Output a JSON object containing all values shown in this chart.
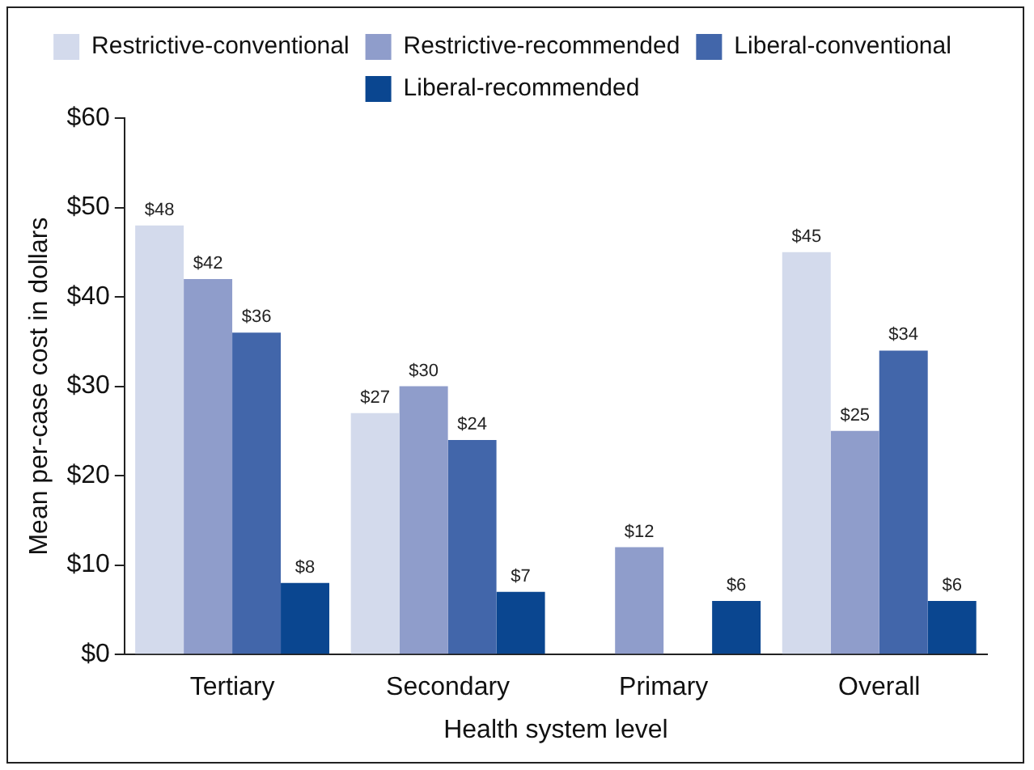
{
  "chart_data": {
    "type": "bar",
    "xlabel": "Health system level",
    "ylabel": "Mean per-case cost in dollars",
    "categories": [
      "Tertiary",
      "Secondary",
      "Primary",
      "Overall"
    ],
    "series": [
      {
        "name": "Restrictive-conventional",
        "color": "#d3daec",
        "values": [
          48,
          27,
          null,
          45
        ],
        "value_labels": [
          "$48",
          "$27",
          null,
          "$45"
        ]
      },
      {
        "name": "Restrictive-recommended",
        "color": "#8f9dcb",
        "values": [
          42,
          30,
          12,
          25
        ],
        "value_labels": [
          "$42",
          "$30",
          "$12",
          "$25"
        ]
      },
      {
        "name": "Liberal-conventional",
        "color": "#4266aa",
        "values": [
          36,
          24,
          null,
          34
        ],
        "value_labels": [
          "$36",
          "$24",
          null,
          "$34"
        ]
      },
      {
        "name": "Liberal-recommended",
        "color": "#0a4690",
        "values": [
          8,
          7,
          6,
          6
        ],
        "value_labels": [
          "$8",
          "$7",
          "$6",
          "$6"
        ]
      }
    ],
    "ylim": [
      0,
      60
    ],
    "yticks": [
      {
        "value": 0,
        "label": "$0"
      },
      {
        "value": 10,
        "label": "$10"
      },
      {
        "value": 20,
        "label": "$20"
      },
      {
        "value": 30,
        "label": "$30"
      },
      {
        "value": 40,
        "label": "$40"
      },
      {
        "value": 50,
        "label": "$50"
      },
      {
        "value": 60,
        "label": "$60"
      }
    ],
    "grid": false,
    "legend": "top"
  }
}
